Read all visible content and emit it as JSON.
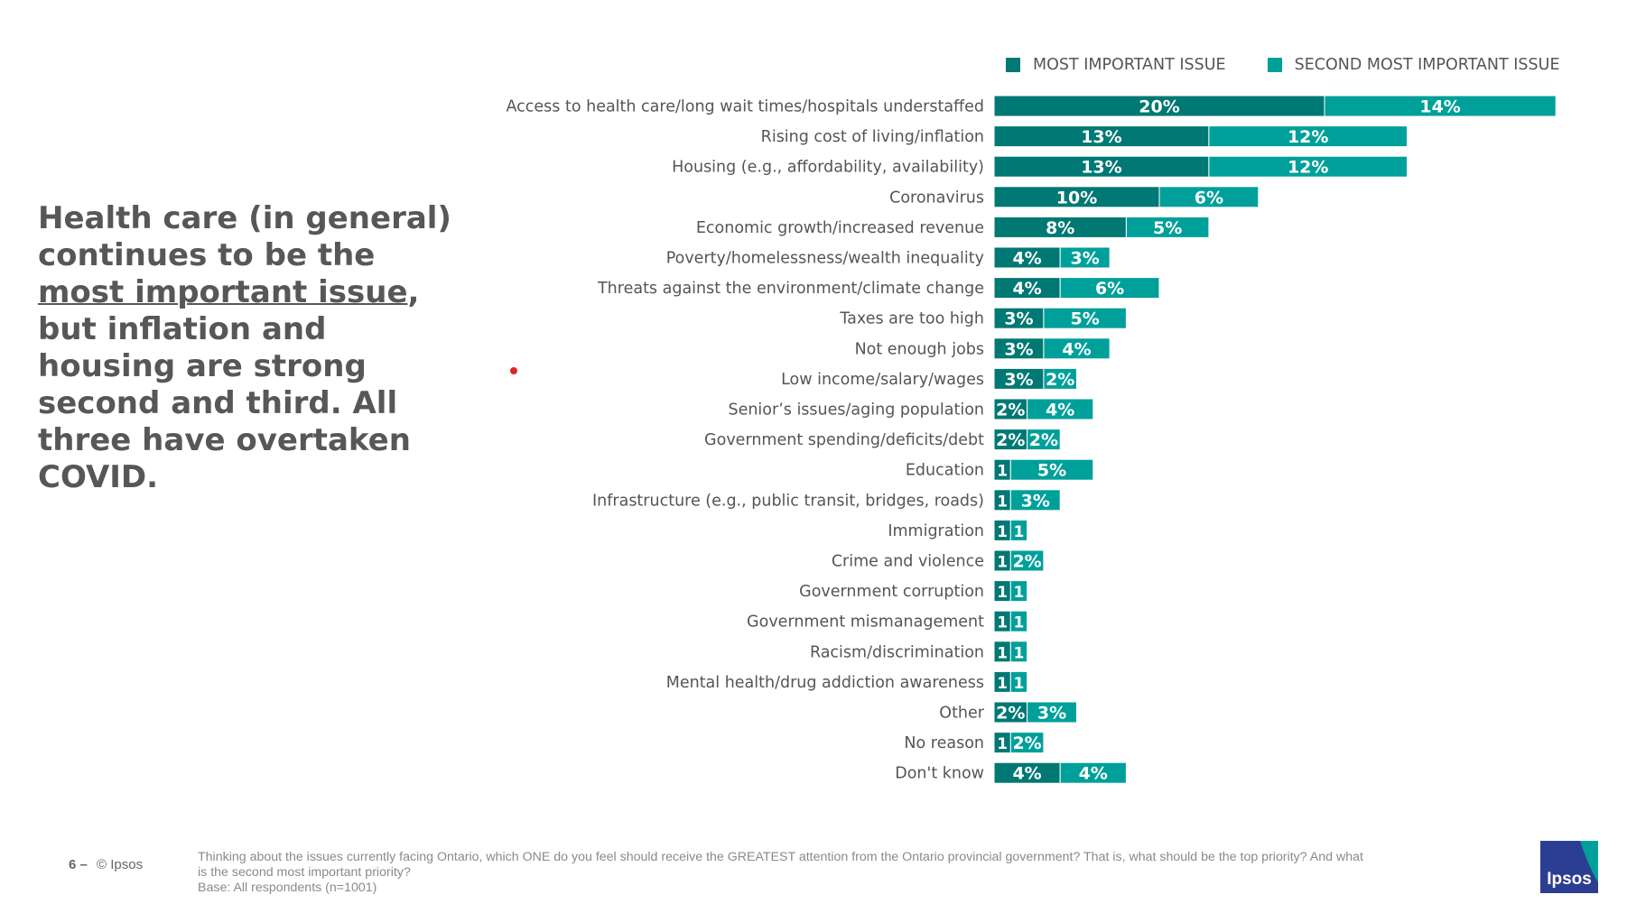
{
  "headline": {
    "part1": "Health care (in general) continues to be the ",
    "underlined": "most important issue",
    "part2": ", but inflation and housing are strong second and third. All three have overtaken COVID."
  },
  "legend": {
    "most_label": "MOST IMPORTANT ISSUE",
    "second_label": "SECOND MOST IMPORTANT ISSUE"
  },
  "colors": {
    "most": "#007873",
    "second": "#00A09A",
    "text": "#555555",
    "headline": "#575757",
    "logo": "#2C3E91",
    "logo_accent": "#00A09A"
  },
  "chart_data": {
    "type": "bar",
    "orientation": "horizontal",
    "stacked": true,
    "categories": [
      "Access to health care/long wait times/hospitals understaffed",
      "Rising cost of living/inflation",
      "Housing (e.g., affordability, availability)",
      "Coronavirus",
      "Economic growth/increased revenue",
      "Poverty/homelessness/wealth inequality",
      "Threats against the environment/climate change",
      "Taxes are too high",
      "Not enough jobs",
      "Low income/salary/wages",
      "Senior’s issues/aging population",
      "Government spending/deficits/debt",
      "Education",
      "Infrastructure (e.g., public transit, bridges, roads)",
      "Immigration",
      "Crime and violence",
      "Government corruption",
      "Government mismanagement",
      "Racism/discrimination",
      "Mental health/drug addiction awareness",
      "Other",
      "No reason",
      "Don't know"
    ],
    "series": [
      {
        "name": "MOST IMPORTANT ISSUE",
        "values": [
          20,
          13,
          13,
          10,
          8,
          4,
          4,
          3,
          3,
          3,
          2,
          2,
          1,
          1,
          1,
          1,
          1,
          1,
          1,
          1,
          2,
          1,
          4
        ],
        "labels": [
          "20%",
          "13%",
          "13%",
          "10%",
          "8%",
          "4%",
          "4%",
          "3%",
          "3%",
          "3%",
          "2%",
          "2%",
          "1",
          "1",
          "1",
          "1",
          "1",
          "1",
          "1",
          "1",
          "2%",
          "1",
          "4%"
        ]
      },
      {
        "name": "SECOND MOST IMPORTANT ISSUE",
        "values": [
          14,
          12,
          12,
          6,
          5,
          3,
          6,
          5,
          4,
          2,
          4,
          2,
          5,
          3,
          1,
          2,
          1,
          1,
          1,
          1,
          3,
          2,
          4
        ],
        "labels": [
          "14%",
          "12%",
          "12%",
          "6%",
          "5%",
          "3%",
          "6%",
          "5%",
          "4%",
          "2%",
          "4%",
          "2%",
          "5%",
          "3%",
          "1",
          "2%",
          "1",
          "1",
          "1",
          "1",
          "3%",
          "2%",
          "4%"
        ]
      }
    ],
    "xlim": [
      0,
      34
    ]
  },
  "footer": {
    "page_number": "6 –",
    "copyright": "© Ipsos",
    "question": "Thinking about the issues currently facing Ontario, which ONE do you feel should receive the GREATEST attention from the Ontario provincial government? That is, what should be the top priority?  And what is the second most important priority?",
    "base": "Base: All respondents (n=1001)"
  },
  "logo": {
    "text": "Ipsos"
  }
}
